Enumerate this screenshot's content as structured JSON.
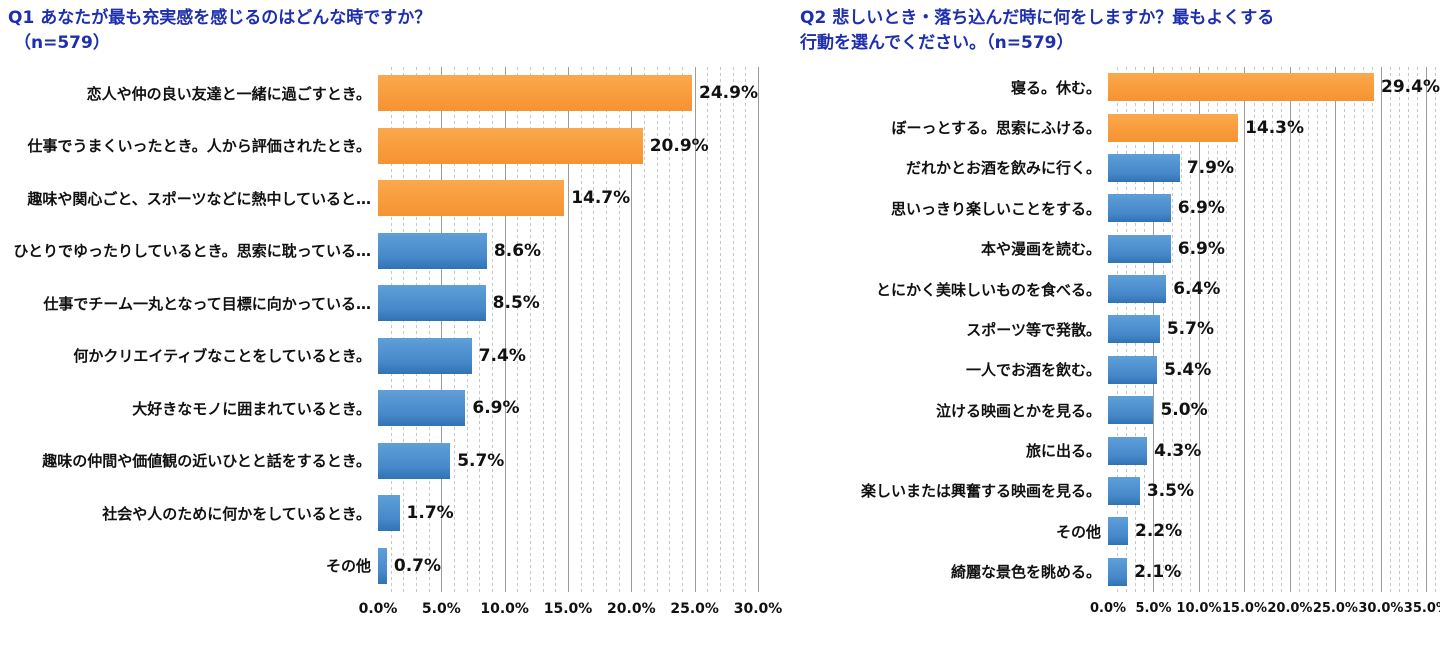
{
  "page": {
    "background": "#ffffff"
  },
  "chart_data": [
    {
      "type": "bar",
      "orientation": "horizontal",
      "title_lines": [
        "Q1 あなたが最も充実感を感じるのはどんな時ですか？",
        "（n=579）"
      ],
      "sample_size": "n=579",
      "categories": [
        "恋人や仲の良い友達と一緒に過ごすとき。",
        "仕事でうまくいったとき。人から評価されたとき。",
        "趣味や関心ごと、スポーツなどに熱中していると…",
        "ひとりでゆったりしているとき。思索に耽っている…",
        "仕事でチーム一丸となって目標に向かっている…",
        "何かクリエイティブなことをしているとき。",
        "大好きなモノに囲まれているとき。",
        "趣味の仲間や価値観の近いひとと話をするとき。",
        "社会や人のために何かをしているとき。",
        "その他"
      ],
      "values": [
        24.9,
        20.9,
        14.7,
        8.6,
        8.5,
        7.4,
        6.9,
        5.7,
        1.7,
        0.7
      ],
      "value_labels": [
        "24.9%",
        "20.9%",
        "14.7%",
        "8.6%",
        "8.5%",
        "7.4%",
        "6.9%",
        "5.7%",
        "1.7%",
        "0.7%"
      ],
      "highlight_count": 3,
      "x_ticks": [
        {
          "label": "0.0%",
          "value": 0
        },
        {
          "label": "5.0%",
          "value": 5
        },
        {
          "label": "10.0%",
          "value": 10
        },
        {
          "label": "15.0%",
          "value": 15
        },
        {
          "label": "20.0%",
          "value": 20
        },
        {
          "label": "25.0%",
          "value": 25
        },
        {
          "label": "30.0%",
          "value": 30
        }
      ],
      "xlim": [
        0,
        30
      ],
      "xlabel": "",
      "ylabel": "",
      "legend": "none",
      "grid": "vertical; minor dashed every 1%, major solid every 5%",
      "colors": {
        "highlight": "#f89c3c",
        "normal": "#4587c9"
      },
      "layout_hints": {
        "axis_render_max": 30,
        "major_step": 5,
        "minor_step": 1,
        "bars_start_at_zero": true
      }
    },
    {
      "type": "bar",
      "orientation": "horizontal",
      "title_lines": [
        "Q2 悲しいとき・落ち込んだ時に何をしますか？最もよくする",
        "行動を選んでください。（n=579）"
      ],
      "sample_size": "n=579",
      "categories": [
        "寝る。休む。",
        "ぼーっとする。思索にふける。",
        "だれかとお酒を飲みに行く。",
        "思いっきり楽しいことをする。",
        "本や漫画を読む。",
        "とにかく美味しいものを食べる。",
        "スポーツ等で発散。",
        "一人でお酒を飲む。",
        "泣ける映画とかを見る。",
        "旅に出る。",
        "楽しいまたは興奮する映画を見る。",
        "その他",
        "綺麗な景色を眺める。"
      ],
      "values": [
        29.4,
        14.3,
        7.9,
        6.9,
        6.9,
        6.4,
        5.7,
        5.4,
        5.0,
        4.3,
        3.5,
        2.2,
        2.1
      ],
      "value_labels": [
        "29.4%",
        "14.3%",
        "7.9%",
        "6.9%",
        "6.9%",
        "6.4%",
        "5.7%",
        "5.4%",
        "5.0%",
        "4.3%",
        "3.5%",
        "2.2%",
        "2.1%"
      ],
      "highlight_count": 2,
      "x_ticks": [
        {
          "label": "0.0%",
          "value": 0
        },
        {
          "label": "5.0%",
          "value": 5
        },
        {
          "label": "10.0%",
          "value": 10
        },
        {
          "label": "15.0%",
          "value": 15
        },
        {
          "label": "20.0%",
          "value": 20
        },
        {
          "label": "25.0%",
          "value": 25
        },
        {
          "label": "30.0%",
          "value": 30
        },
        {
          "label": "35.0%",
          "value": 35
        }
      ],
      "xlim": [
        0,
        35
      ],
      "xlabel": "",
      "ylabel": "",
      "legend": "none",
      "grid": "vertical; minor dashed every 1%, major solid every 5%",
      "colors": {
        "highlight": "#f89c3c",
        "normal": "#4587c9"
      },
      "layout_hints": {
        "axis_render_max": 36.5,
        "major_step": 5,
        "minor_step": 1,
        "bars_start_at_zero": true
      }
    }
  ],
  "text_colors": {
    "title": "#1e2fae",
    "labels": "#111111"
  }
}
